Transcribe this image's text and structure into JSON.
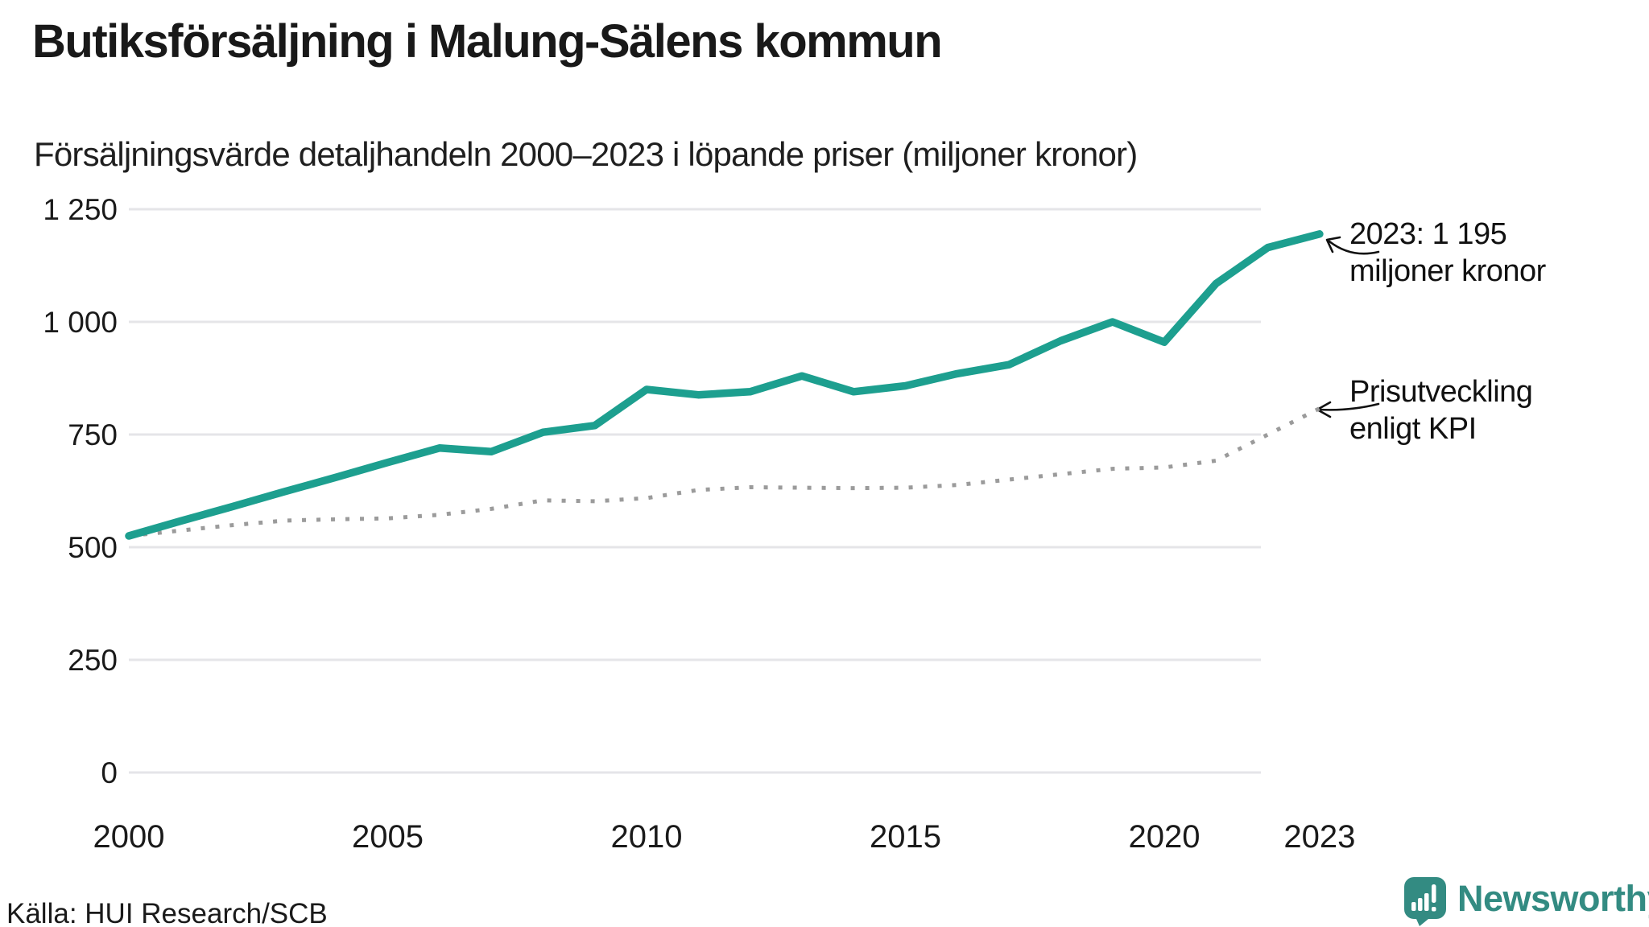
{
  "header": {
    "title": "Butiksförsäljning i Malung-Sälens kommun",
    "subtitle": "Försäljningsvärde detaljhandeln 2000–2023 i löpande priser (miljoner kronor)"
  },
  "chart_data": {
    "type": "line",
    "title": "Butiksförsäljning i Malung-Sälens kommun",
    "subtitle": "Försäljningsvärde detaljhandeln 2000–2023 i löpande priser (miljoner kronor)",
    "x": [
      2000,
      2001,
      2002,
      2003,
      2004,
      2005,
      2006,
      2007,
      2008,
      2009,
      2010,
      2011,
      2012,
      2013,
      2014,
      2015,
      2016,
      2017,
      2018,
      2019,
      2020,
      2021,
      2022,
      2023
    ],
    "series": [
      {
        "name": "Försäljningsvärde detaljhandeln, löpande priser (miljoner kronor)",
        "color": "#1d9f8f",
        "line_style": "solid",
        "values": [
          525,
          558,
          590,
          623,
          655,
          688,
          720,
          712,
          755,
          770,
          850,
          838,
          845,
          880,
          845,
          858,
          885,
          905,
          958,
          1000,
          955,
          1085,
          1165,
          1195
        ]
      },
      {
        "name": "Prisutveckling enligt KPI",
        "color": "#9b9b9b",
        "line_style": "dotted",
        "values": [
          525,
          537,
          549,
          559,
          562,
          564,
          572,
          585,
          604,
          602,
          609,
          627,
          633,
          632,
          631,
          632,
          638,
          650,
          662,
          674,
          677,
          692,
          750,
          808
        ]
      }
    ],
    "xlabel": "",
    "ylabel": "",
    "ylim": [
      0,
      1250
    ],
    "xlim": [
      2000,
      2023
    ],
    "grid": "horizontal",
    "legend_position": "none",
    "yticks": {
      "values": [
        0,
        250,
        500,
        750,
        1000,
        1250
      ],
      "labels": [
        "0",
        "250",
        "500",
        "750",
        "1 000",
        "1 250"
      ]
    },
    "xticks": {
      "values": [
        2000,
        2005,
        2010,
        2015,
        2020,
        2023
      ],
      "labels": [
        "2000",
        "2005",
        "2010",
        "2015",
        "2020",
        "2023"
      ]
    }
  },
  "annotations": {
    "latest": {
      "line1": "2023: 1 195",
      "line2": "miljoner kronor",
      "target_year": 2023,
      "target_value": 1195
    },
    "kpi": {
      "line1": "Prisutveckling",
      "line2": "enligt KPI",
      "target_year": 2023,
      "target_value": 808
    }
  },
  "source": "Källa: HUI Research/SCB",
  "logo": {
    "text": "Newsworthy",
    "color": "#338b82"
  },
  "colors": {
    "sales_line": "#1d9f8f",
    "kpi_line": "#9b9b9b",
    "grid": "#e5e5e8",
    "text": "#1a1a1a",
    "background": "#ffffff"
  }
}
